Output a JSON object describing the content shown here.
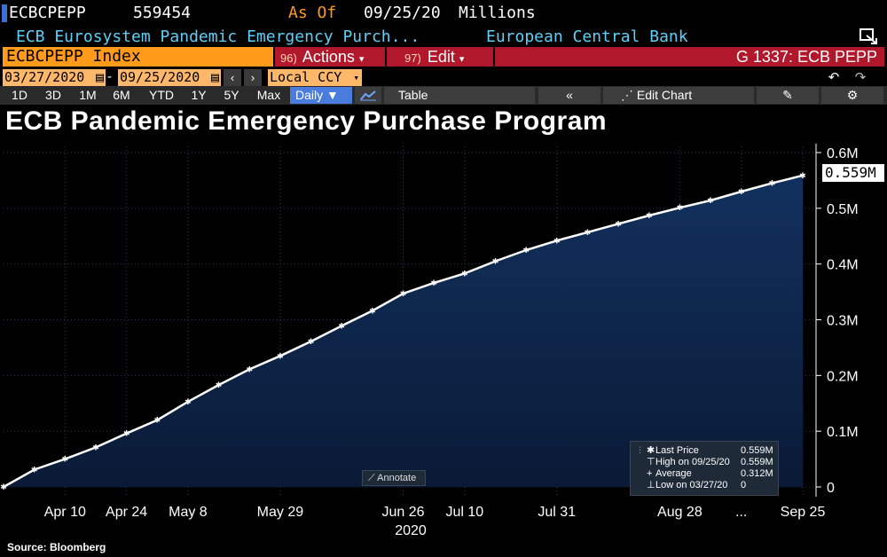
{
  "header": {
    "ticker": "ECBCPEPP",
    "price": "559454",
    "asof_label": "As Of",
    "asof_date": "09/25/20",
    "units": "Millions",
    "description": "ECB Eurosystem Pandemic Emergency Purch...",
    "issuer": "European Central Bank"
  },
  "menubar": {
    "index_label": "ECBCPEPP Index",
    "actions_num": "96)",
    "actions_label": "Actions",
    "edit_num": "97)",
    "edit_label": "Edit",
    "gcode": "G 1337: ECB PEPP"
  },
  "daterange": {
    "start": "03/27/2020",
    "end": "09/25/2020",
    "dash": "-",
    "currency": "Local CCY"
  },
  "toolbar": {
    "periods": [
      "1D",
      "3D",
      "1M",
      "6M",
      "YTD",
      "1Y",
      "5Y",
      "Max"
    ],
    "frequency": "Daily",
    "table_label": "Table",
    "edit_chart_label": "Edit Chart"
  },
  "colors": {
    "accent_orange": "#ff9a1a",
    "menu_red": "#b1182b",
    "chart_fill": "#0d2244",
    "line": "#ffffff",
    "header_cyan": "#5ecff7"
  },
  "chart_data": {
    "type": "area",
    "title": "ECB Pandemic Emergency Purchase Program",
    "source": "Source: Bloomberg",
    "x_ticks": [
      "Apr 10",
      "Apr 24",
      "May 8",
      "May 29",
      "Jun 26",
      "Jul 10",
      "Jul 31",
      "Aug 28",
      "...",
      "Sep 25"
    ],
    "x_year_label": "2020",
    "y_ticks": [
      "0",
      "0.1M",
      "0.2M",
      "0.3M",
      "0.4M",
      "0.5M",
      "0.6M"
    ],
    "ylim": [
      0,
      0.6
    ],
    "grid": true,
    "last_value_label": "0.559M",
    "annotate_label": "Annotate",
    "series": [
      {
        "x": [
          "2020-03-27",
          "2020-04-03",
          "2020-04-10",
          "2020-04-17",
          "2020-04-24",
          "2020-05-01",
          "2020-05-08",
          "2020-05-15",
          "2020-05-22",
          "2020-05-29",
          "2020-06-05",
          "2020-06-12",
          "2020-06-19",
          "2020-06-26",
          "2020-07-03",
          "2020-07-10",
          "2020-07-17",
          "2020-07-24",
          "2020-07-31",
          "2020-08-07",
          "2020-08-14",
          "2020-08-21",
          "2020-08-28",
          "2020-09-04",
          "2020-09-11",
          "2020-09-18",
          "2020-09-25"
        ],
        "values": [
          0.0,
          0.031,
          0.05,
          0.071,
          0.096,
          0.12,
          0.153,
          0.183,
          0.211,
          0.235,
          0.261,
          0.289,
          0.316,
          0.347,
          0.366,
          0.383,
          0.405,
          0.425,
          0.442,
          0.457,
          0.472,
          0.487,
          0.501,
          0.514,
          0.53,
          0.545,
          0.559
        ]
      }
    ],
    "legend": {
      "position": "bottom-right",
      "items": [
        {
          "label": "Last Price",
          "value": "0.559M"
        },
        {
          "label": "High on 09/25/20",
          "value": "0.559M"
        },
        {
          "label": "Average",
          "value": "0.312M"
        },
        {
          "label": "Low on 03/27/20",
          "value": "0"
        }
      ]
    }
  }
}
